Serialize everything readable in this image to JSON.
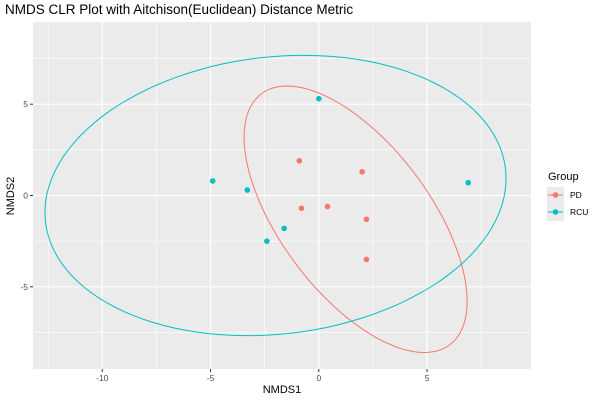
{
  "chart_data": {
    "type": "scatter",
    "title": "NMDS CLR Plot with Aitchison(Euclidean) Distance Metric",
    "xlabel": "NMDS1",
    "ylabel": "NMDS2",
    "xlim": [
      -13.2,
      9.8
    ],
    "ylim": [
      -9.5,
      9.5
    ],
    "x_ticks": [
      -10,
      -5,
      0,
      5
    ],
    "y_ticks": [
      -5,
      0,
      5
    ],
    "x_tick_labels": [
      "-10",
      "-5",
      "0",
      "5"
    ],
    "y_tick_labels": [
      "-5",
      "0",
      "5"
    ],
    "grid": true,
    "legend": {
      "title": "Group",
      "position": "right"
    },
    "series": [
      {
        "name": "PD",
        "color": "#F8766D",
        "points": [
          {
            "x": -0.9,
            "y": 1.9
          },
          {
            "x": 2.0,
            "y": 1.3
          },
          {
            "x": -0.8,
            "y": -0.7
          },
          {
            "x": 0.4,
            "y": -0.6
          },
          {
            "x": 2.2,
            "y": -1.3
          },
          {
            "x": 2.2,
            "y": -3.5
          }
        ],
        "ellipse": {
          "cx": 1.7,
          "cy": -1.3,
          "rx": 8.16,
          "ry": 3.63,
          "angle_deg": -60
        }
      },
      {
        "name": "RCU",
        "color": "#00BFC4",
        "points": [
          {
            "x": 0.0,
            "y": 5.3
          },
          {
            "x": -4.9,
            "y": 0.8
          },
          {
            "x": -3.3,
            "y": 0.3
          },
          {
            "x": 6.9,
            "y": 0.7
          },
          {
            "x": -1.6,
            "y": -1.8
          },
          {
            "x": -2.4,
            "y": -2.5
          }
        ],
        "ellipse": {
          "cx": -2.0,
          "cy": 0.0,
          "rx": 10.73,
          "ry": 7.56,
          "angle_deg": 10
        }
      }
    ]
  }
}
